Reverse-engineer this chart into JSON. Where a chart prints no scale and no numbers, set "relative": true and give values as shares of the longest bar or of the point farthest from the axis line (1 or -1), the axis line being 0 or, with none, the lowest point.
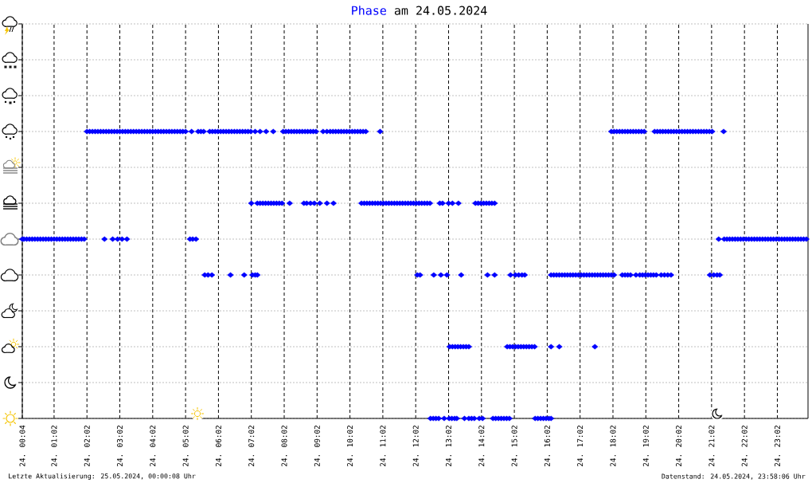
{
  "chart_data": {
    "type": "scatter",
    "title": "am 24.05.2024",
    "xlim": [
      "2024-05-24T00:04",
      "2024-05-24T23:58"
    ],
    "xticks": [
      {
        "value": "2024-05-24T00:04",
        "label": "24. 00:04"
      },
      {
        "value": "2024-05-24T01:02",
        "label": "24. 01:02"
      },
      {
        "value": "2024-05-24T02:02",
        "label": "24. 02:02"
      },
      {
        "value": "2024-05-24T03:02",
        "label": "24. 03:02"
      },
      {
        "value": "2024-05-24T04:02",
        "label": "24. 04:02"
      },
      {
        "value": "2024-05-24T05:02",
        "label": "24. 05:02"
      },
      {
        "value": "2024-05-24T06:02",
        "label": "24. 06:02"
      },
      {
        "value": "2024-05-24T07:02",
        "label": "24. 07:02"
      },
      {
        "value": "2024-05-24T08:02",
        "label": "24. 08:02"
      },
      {
        "value": "2024-05-24T09:02",
        "label": "24. 09:02"
      },
      {
        "value": "2024-05-24T10:02",
        "label": "24. 10:02"
      },
      {
        "value": "2024-05-24T11:02",
        "label": "24. 11:02"
      },
      {
        "value": "2024-05-24T12:02",
        "label": "24. 12:02"
      },
      {
        "value": "2024-05-24T13:02",
        "label": "24. 13:02"
      },
      {
        "value": "2024-05-24T14:02",
        "label": "24. 14:02"
      },
      {
        "value": "2024-05-24T15:02",
        "label": "24. 15:02"
      },
      {
        "value": "2024-05-24T16:02",
        "label": "24. 16:02"
      },
      {
        "value": "2024-05-24T17:02",
        "label": "24. 17:02"
      },
      {
        "value": "2024-05-24T18:02",
        "label": "24. 18:02"
      },
      {
        "value": "2024-05-24T19:02",
        "label": "24. 19:02"
      },
      {
        "value": "2024-05-24T20:02",
        "label": "24. 20:02"
      },
      {
        "value": "2024-05-24T21:02",
        "label": "24. 21:02"
      },
      {
        "value": "2024-05-24T22:02",
        "label": "24. 22:02"
      },
      {
        "value": "2024-05-24T23:02",
        "label": "24. 23:02"
      }
    ],
    "relative": true,
    "grid": true,
    "legend": "top",
    "marker": "diamond",
    "series": [
      {
        "name": "Phase",
        "color": "#0000ff",
        "x": [
          "2024-05-24T00:04",
          "2024-05-24T00:07",
          "2024-05-24T00:12",
          "2024-05-24T00:17",
          "2024-05-24T00:22",
          "2024-05-24T00:27",
          "2024-05-24T00:32",
          "2024-05-24T00:37",
          "2024-05-24T00:42",
          "2024-05-24T00:47",
          "2024-05-24T00:52",
          "2024-05-24T00:57",
          "2024-05-24T01:02",
          "2024-05-24T01:07",
          "2024-05-24T01:12",
          "2024-05-24T01:17",
          "2024-05-24T01:22",
          "2024-05-24T01:27",
          "2024-05-24T01:32",
          "2024-05-24T01:37",
          "2024-05-24T01:42",
          "2024-05-24T01:47",
          "2024-05-24T01:52",
          "2024-05-24T01:57",
          "2024-05-24T02:34",
          "2024-05-24T02:49",
          "2024-05-24T02:58",
          "2024-05-24T03:06",
          "2024-05-24T03:15",
          "2024-05-24T05:10",
          "2024-05-24T05:15",
          "2024-05-24T05:21",
          "2024-05-24T21:15",
          "2024-05-24T21:25",
          "2024-05-24T21:30",
          "2024-05-24T21:35",
          "2024-05-24T21:40",
          "2024-05-24T21:45",
          "2024-05-24T21:50",
          "2024-05-24T21:55",
          "2024-05-24T22:00",
          "2024-05-24T22:05",
          "2024-05-24T22:10",
          "2024-05-24T22:15",
          "2024-05-24T22:20",
          "2024-05-24T22:25",
          "2024-05-24T22:30",
          "2024-05-24T22:35",
          "2024-05-24T22:40",
          "2024-05-24T22:45",
          "2024-05-24T22:50",
          "2024-05-24T22:55",
          "2024-05-24T23:00",
          "2024-05-24T23:05",
          "2024-05-24T23:10",
          "2024-05-24T23:15",
          "2024-05-24T23:20",
          "2024-05-24T23:25",
          "2024-05-24T23:30",
          "2024-05-24T23:35",
          "2024-05-24T23:40",
          "2024-05-24T23:45",
          "2024-05-24T23:50",
          "2024-05-24T23:55",
          "2024-05-24T02:02",
          "2024-05-24T02:07",
          "2024-05-24T02:12",
          "2024-05-24T02:17",
          "2024-05-24T02:22",
          "2024-05-24T02:27",
          "2024-05-24T02:32",
          "2024-05-24T02:37",
          "2024-05-24T02:42",
          "2024-05-24T02:47",
          "2024-05-24T02:52",
          "2024-05-24T02:57",
          "2024-05-24T03:02",
          "2024-05-24T03:07",
          "2024-05-24T03:12",
          "2024-05-24T03:17",
          "2024-05-24T03:22",
          "2024-05-24T03:27",
          "2024-05-24T03:32",
          "2024-05-24T03:37",
          "2024-05-24T03:42",
          "2024-05-24T03:47",
          "2024-05-24T03:52",
          "2024-05-24T03:57",
          "2024-05-24T04:02",
          "2024-05-24T04:07",
          "2024-05-24T04:12",
          "2024-05-24T04:17",
          "2024-05-24T04:22",
          "2024-05-24T04:27",
          "2024-05-24T04:32",
          "2024-05-24T04:37",
          "2024-05-24T04:42",
          "2024-05-24T04:47",
          "2024-05-24T04:52",
          "2024-05-24T04:57",
          "2024-05-24T05:02",
          "2024-05-24T05:13",
          "2024-05-24T05:25",
          "2024-05-24T05:30",
          "2024-05-24T05:35",
          "2024-05-24T05:46",
          "2024-05-24T05:51",
          "2024-05-24T05:56",
          "2024-05-24T06:01",
          "2024-05-24T06:06",
          "2024-05-24T06:11",
          "2024-05-24T06:16",
          "2024-05-24T06:21",
          "2024-05-24T06:26",
          "2024-05-24T06:31",
          "2024-05-24T06:36",
          "2024-05-24T06:41",
          "2024-05-24T06:46",
          "2024-05-24T06:51",
          "2024-05-24T06:56",
          "2024-05-24T07:01",
          "2024-05-24T07:09",
          "2024-05-24T07:18",
          "2024-05-24T07:29",
          "2024-05-24T07:42",
          "2024-05-24T08:00",
          "2024-05-24T08:05",
          "2024-05-24T08:10",
          "2024-05-24T08:15",
          "2024-05-24T08:20",
          "2024-05-24T08:25",
          "2024-05-24T08:30",
          "2024-05-24T08:35",
          "2024-05-24T08:40",
          "2024-05-24T08:45",
          "2024-05-24T08:50",
          "2024-05-24T08:55",
          "2024-05-24T09:00",
          "2024-05-24T09:13",
          "2024-05-24T09:20",
          "2024-05-24T09:26",
          "2024-05-24T09:31",
          "2024-05-24T09:36",
          "2024-05-24T09:41",
          "2024-05-24T09:46",
          "2024-05-24T09:51",
          "2024-05-24T09:56",
          "2024-05-24T10:01",
          "2024-05-24T10:06",
          "2024-05-24T10:11",
          "2024-05-24T10:16",
          "2024-05-24T10:21",
          "2024-05-24T10:26",
          "2024-05-24T10:31",
          "2024-05-24T10:57",
          "2024-05-24T17:59",
          "2024-05-24T18:04",
          "2024-05-24T18:09",
          "2024-05-24T18:14",
          "2024-05-24T18:19",
          "2024-05-24T18:24",
          "2024-05-24T18:29",
          "2024-05-24T18:34",
          "2024-05-24T18:39",
          "2024-05-24T18:44",
          "2024-05-24T18:49",
          "2024-05-24T18:54",
          "2024-05-24T18:59",
          "2024-05-24T19:18",
          "2024-05-24T19:23",
          "2024-05-24T19:28",
          "2024-05-24T19:33",
          "2024-05-24T19:38",
          "2024-05-24T19:43",
          "2024-05-24T19:48",
          "2024-05-24T19:53",
          "2024-05-24T19:58",
          "2024-05-24T20:03",
          "2024-05-24T20:08",
          "2024-05-24T20:13",
          "2024-05-24T20:18",
          "2024-05-24T20:23",
          "2024-05-24T20:28",
          "2024-05-24T20:33",
          "2024-05-24T20:38",
          "2024-05-24T20:43",
          "2024-05-24T20:48",
          "2024-05-24T20:53",
          "2024-05-24T20:58",
          "2024-05-24T21:03",
          "2024-05-24T21:24",
          "2024-05-24T07:02",
          "2024-05-24T07:13",
          "2024-05-24T07:18",
          "2024-05-24T07:23",
          "2024-05-24T07:28",
          "2024-05-24T07:33",
          "2024-05-24T07:38",
          "2024-05-24T07:43",
          "2024-05-24T07:48",
          "2024-05-24T07:53",
          "2024-05-24T07:58",
          "2024-05-24T08:12",
          "2024-05-24T08:38",
          "2024-05-24T08:43",
          "2024-05-24T08:50",
          "2024-05-24T08:57",
          "2024-05-24T09:07",
          "2024-05-24T09:20",
          "2024-05-24T09:32",
          "2024-05-24T10:23",
          "2024-05-24T10:28",
          "2024-05-24T10:33",
          "2024-05-24T10:38",
          "2024-05-24T10:43",
          "2024-05-24T10:48",
          "2024-05-24T10:53",
          "2024-05-24T10:58",
          "2024-05-24T11:03",
          "2024-05-24T11:08",
          "2024-05-24T11:13",
          "2024-05-24T11:18",
          "2024-05-24T11:23",
          "2024-05-24T11:28",
          "2024-05-24T11:33",
          "2024-05-24T11:38",
          "2024-05-24T11:43",
          "2024-05-24T11:48",
          "2024-05-24T11:53",
          "2024-05-24T11:58",
          "2024-05-24T12:03",
          "2024-05-24T12:08",
          "2024-05-24T12:13",
          "2024-05-24T12:18",
          "2024-05-24T12:23",
          "2024-05-24T12:28",
          "2024-05-24T12:46",
          "2024-05-24T12:51",
          "2024-05-24T13:02",
          "2024-05-24T13:09",
          "2024-05-24T13:20",
          "2024-05-24T13:51",
          "2024-05-24T13:56",
          "2024-05-24T14:01",
          "2024-05-24T14:06",
          "2024-05-24T14:11",
          "2024-05-24T14:16",
          "2024-05-24T14:21",
          "2024-05-24T14:26",
          "2024-05-24T05:37",
          "2024-05-24T05:43",
          "2024-05-24T05:50",
          "2024-05-24T06:24",
          "2024-05-24T06:49",
          "2024-05-24T07:04",
          "2024-05-24T07:09",
          "2024-05-24T07:13",
          "2024-05-24T12:05",
          "2024-05-24T12:10",
          "2024-05-24T12:35",
          "2024-05-24T12:48",
          "2024-05-24T12:59",
          "2024-05-24T13:25",
          "2024-05-24T14:13",
          "2024-05-24T14:26",
          "2024-05-24T14:55",
          "2024-05-24T15:04",
          "2024-05-24T15:10",
          "2024-05-24T15:16",
          "2024-05-24T15:21",
          "2024-05-24T16:09",
          "2024-05-24T16:14",
          "2024-05-24T16:19",
          "2024-05-24T16:24",
          "2024-05-24T16:29",
          "2024-05-24T16:34",
          "2024-05-24T16:39",
          "2024-05-24T16:44",
          "2024-05-24T16:49",
          "2024-05-24T16:54",
          "2024-05-24T16:59",
          "2024-05-24T17:04",
          "2024-05-24T17:09",
          "2024-05-24T17:14",
          "2024-05-24T17:19",
          "2024-05-24T17:24",
          "2024-05-24T17:29",
          "2024-05-24T17:34",
          "2024-05-24T17:39",
          "2024-05-24T17:44",
          "2024-05-24T17:49",
          "2024-05-24T17:54",
          "2024-05-24T17:59",
          "2024-05-24T18:04",
          "2024-05-24T18:19",
          "2024-05-24T18:24",
          "2024-05-24T18:29",
          "2024-05-24T18:34",
          "2024-05-24T18:44",
          "2024-05-24T18:51",
          "2024-05-24T18:56",
          "2024-05-24T19:01",
          "2024-05-24T19:06",
          "2024-05-24T19:11",
          "2024-05-24T19:16",
          "2024-05-24T19:21",
          "2024-05-24T19:30",
          "2024-05-24T19:36",
          "2024-05-24T19:42",
          "2024-05-24T19:48",
          "2024-05-24T20:59",
          "2024-05-24T21:06",
          "2024-05-24T21:12",
          "2024-05-24T21:17",
          "2024-05-24T13:04",
          "2024-05-24T13:09",
          "2024-05-24T13:14",
          "2024-05-24T13:19",
          "2024-05-24T13:24",
          "2024-05-24T13:29",
          "2024-05-24T13:34",
          "2024-05-24T13:39",
          "2024-05-24T14:49",
          "2024-05-24T14:54",
          "2024-05-24T14:59",
          "2024-05-24T15:04",
          "2024-05-24T15:09",
          "2024-05-24T15:14",
          "2024-05-24T15:19",
          "2024-05-24T15:24",
          "2024-05-24T15:29",
          "2024-05-24T15:34",
          "2024-05-24T15:39",
          "2024-05-24T16:09",
          "2024-05-24T16:24",
          "2024-05-24T17:29",
          "2024-05-24T12:29",
          "2024-05-24T12:34",
          "2024-05-24T12:39",
          "2024-05-24T12:44",
          "2024-05-24T12:54",
          "2024-05-24T13:03",
          "2024-05-24T13:08",
          "2024-05-24T13:13",
          "2024-05-24T13:17",
          "2024-05-24T13:31",
          "2024-05-24T13:39",
          "2024-05-24T13:44",
          "2024-05-24T13:49",
          "2024-05-24T13:58",
          "2024-05-24T14:04",
          "2024-05-24T14:23",
          "2024-05-24T14:28",
          "2024-05-24T14:33",
          "2024-05-24T14:38",
          "2024-05-24T14:43",
          "2024-05-24T14:48",
          "2024-05-24T14:53",
          "2024-05-24T15:40",
          "2024-05-24T15:45",
          "2024-05-24T15:50",
          "2024-05-24T15:55",
          "2024-05-24T16:00",
          "2024-05-24T16:05",
          "2024-05-24T16:09"
        ],
        "values": [
          0.625,
          0.625,
          0.625,
          0.625,
          0.625,
          0.625,
          0.625,
          0.625,
          0.625,
          0.625,
          0.625,
          0.625,
          0.625,
          0.625,
          0.625,
          0.625,
          0.625,
          0.625,
          0.625,
          0.625,
          0.625,
          0.625,
          0.625,
          0.625,
          0.625,
          0.625,
          0.625,
          0.625,
          0.625,
          0.625,
          0.625,
          0.625,
          0.625,
          0.625,
          0.625,
          0.625,
          0.625,
          0.625,
          0.625,
          0.625,
          0.625,
          0.625,
          0.625,
          0.625,
          0.625,
          0.625,
          0.625,
          0.625,
          0.625,
          0.625,
          0.625,
          0.625,
          0.625,
          0.625,
          0.625,
          0.625,
          0.625,
          0.625,
          0.625,
          0.625,
          0.625,
          0.625,
          0.625,
          0.625,
          1,
          1,
          1,
          1,
          1,
          1,
          1,
          1,
          1,
          1,
          1,
          1,
          1,
          1,
          1,
          1,
          1,
          1,
          1,
          1,
          1,
          1,
          1,
          1,
          1,
          1,
          1,
          1,
          1,
          1,
          1,
          1,
          1,
          1,
          1,
          1,
          1,
          1,
          1,
          1,
          1,
          1,
          1,
          1,
          1,
          1,
          1,
          1,
          1,
          1,
          1,
          1,
          1,
          1,
          1,
          1,
          1,
          1,
          1,
          1,
          1,
          1,
          1,
          1,
          1,
          1,
          1,
          1,
          1,
          1,
          1,
          1,
          1,
          1,
          1,
          1,
          1,
          1,
          1,
          1,
          1,
          1,
          1,
          1,
          1,
          1,
          1,
          1,
          1,
          1,
          1,
          1,
          1,
          1,
          1,
          1,
          1,
          1,
          1,
          1,
          1,
          1,
          1,
          1,
          1,
          1,
          1,
          1,
          1,
          1,
          1,
          1,
          1,
          1,
          1,
          1,
          1,
          1,
          1,
          1,
          1,
          1,
          1,
          1,
          1,
          1,
          1,
          0.75,
          0.75,
          0.75,
          0.75,
          0.75,
          0.75,
          0.75,
          0.75,
          0.75,
          0.75,
          0.75,
          0.75,
          0.75,
          0.75,
          0.75,
          0.75,
          0.75,
          0.75,
          0.75,
          0.75,
          0.75,
          0.75,
          0.75,
          0.75,
          0.75,
          0.75,
          0.75,
          0.75,
          0.75,
          0.75,
          0.75,
          0.75,
          0.75,
          0.75,
          0.75,
          0.75,
          0.75,
          0.75,
          0.75,
          0.75,
          0.75,
          0.75,
          0.75,
          0.75,
          0.75,
          0.75,
          0.75,
          0.75,
          0.75,
          0.75,
          0.75,
          0.75,
          0.75,
          0.75,
          0.75,
          0.75,
          0.75,
          0.75,
          0.5,
          0.5,
          0.5,
          0.5,
          0.5,
          0.5,
          0.5,
          0.5,
          0.5,
          0.5,
          0.5,
          0.5,
          0.5,
          0.5,
          0.5,
          0.5,
          0.5,
          0.5,
          0.5,
          0.5,
          0.5,
          0.5,
          0.5,
          0.5,
          0.5,
          0.5,
          0.5,
          0.5,
          0.5,
          0.5,
          0.5,
          0.5,
          0.5,
          0.5,
          0.5,
          0.5,
          0.5,
          0.5,
          0.5,
          0.5,
          0.5,
          0.5,
          0.5,
          0.5,
          0.5,
          0.5,
          0.5,
          0.5,
          0.5,
          0.5,
          0.5,
          0.5,
          0.5,
          0.5,
          0.5,
          0.5,
          0.5,
          0.5,
          0.5,
          0.5,
          0.5,
          0.5,
          0.5,
          0.5,
          0.5,
          0.25,
          0.25,
          0.25,
          0.25,
          0.25,
          0.25,
          0.25,
          0.25,
          0.25,
          0.25,
          0.25,
          0.25,
          0.25,
          0.25,
          0.25,
          0.25,
          0.25,
          0.25,
          0.25,
          0.25,
          0.25,
          0.25,
          0,
          0,
          0,
          0,
          0,
          0,
          0,
          0,
          0,
          0,
          0,
          0,
          0,
          0,
          0,
          0,
          0,
          0,
          0,
          0,
          0,
          0,
          0,
          0,
          0,
          0,
          0,
          0,
          0
        ]
      }
    ],
    "annotations": [
      "Letzte Aktualisierung: 25.05.2024, 00:00:08 Uhr",
      "Datenstand: 24.05.2024, 23:58:06 Uhr"
    ]
  }
}
